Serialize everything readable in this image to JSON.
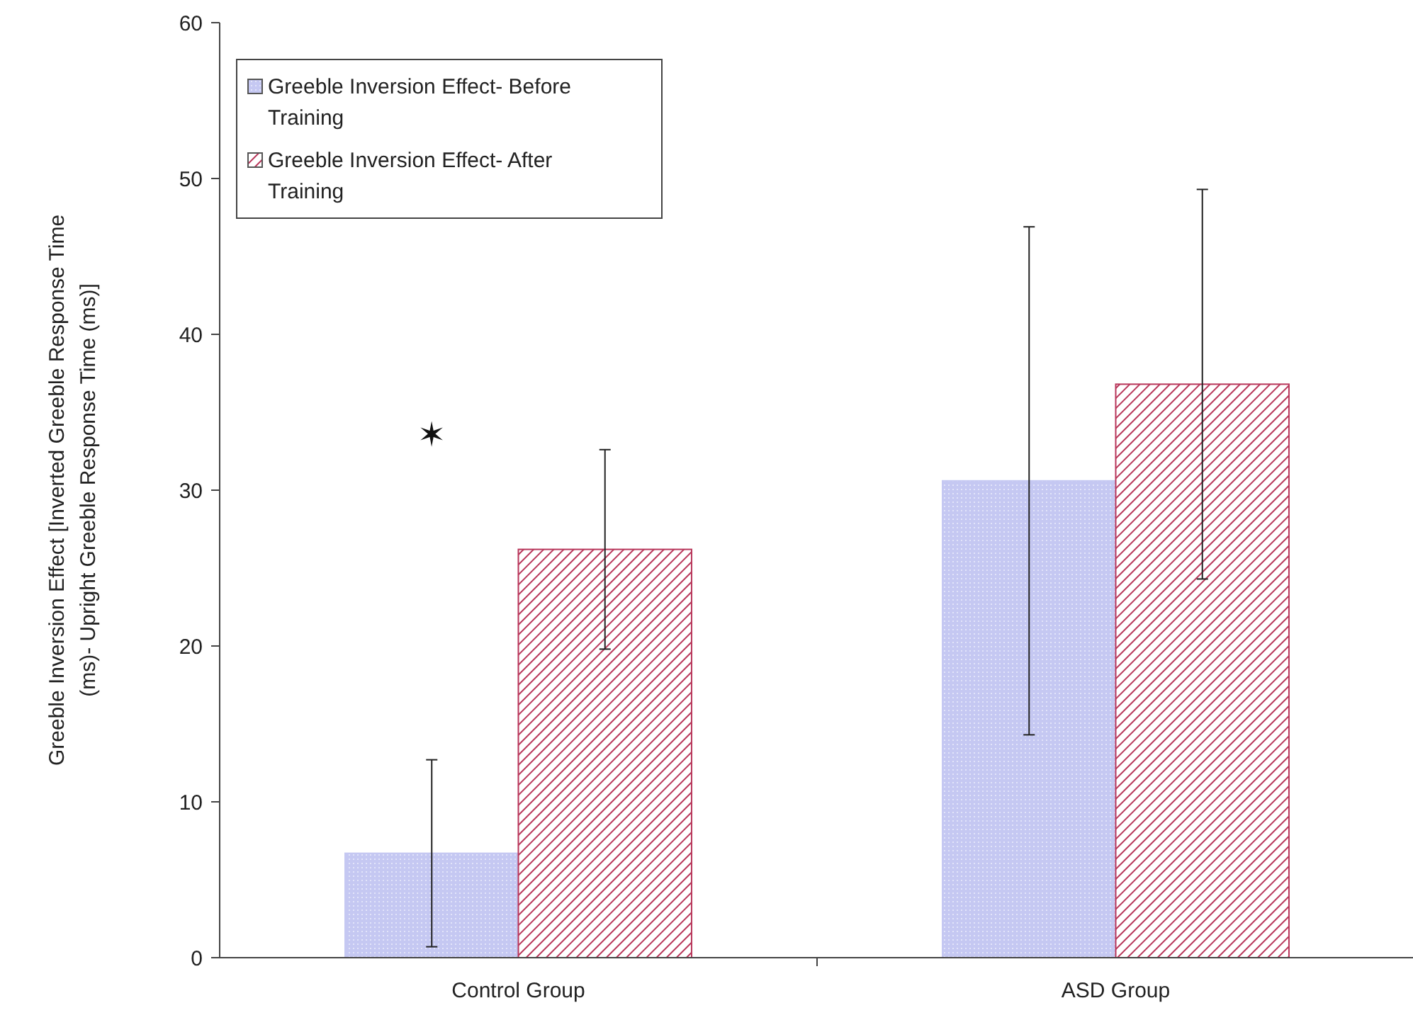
{
  "chart_data": {
    "type": "bar",
    "ylabel": "Greeble Inversion Effect [Inverted Greeble Response Time (ms)- Upright Greeble Response Time (ms)]",
    "categories": [
      "Control Group",
      "ASD Group"
    ],
    "series": [
      {
        "name": "Greeble Inversion Effect- Before Training",
        "color": "#c5c8f2",
        "values": [
          6.7,
          30.6
        ],
        "errors": [
          6.0,
          16.3
        ]
      },
      {
        "name": "Greeble Inversion Effect- After Training",
        "color": "#b8365a",
        "values": [
          26.2,
          36.8
        ],
        "errors": [
          6.4,
          12.5
        ]
      }
    ],
    "ylim": [
      0,
      60
    ],
    "yticks": [
      0,
      10,
      20,
      30,
      40,
      50,
      60
    ],
    "grid": false,
    "legend": "top left",
    "annotations": [
      "✶"
    ]
  }
}
